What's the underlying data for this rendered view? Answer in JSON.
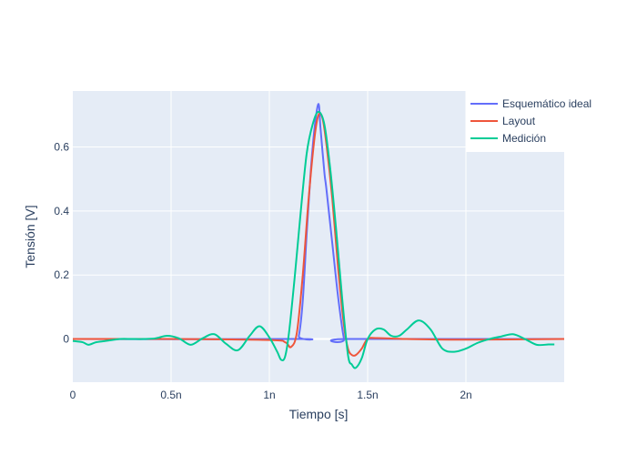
{
  "chart_data": {
    "type": "line",
    "xlabel": "Tiempo [s]",
    "ylabel": "Tensión [V]",
    "xlim": [
      0,
      2.5e-09
    ],
    "ylim": [
      -0.135,
      0.775
    ],
    "xticks": [
      {
        "value": 0,
        "label": "0"
      },
      {
        "value": 5e-10,
        "label": "0.5n"
      },
      {
        "value": 1e-09,
        "label": "1n"
      },
      {
        "value": 1.5e-09,
        "label": "1.5n"
      },
      {
        "value": 2e-09,
        "label": "2n"
      }
    ],
    "yticks": [
      {
        "value": 0,
        "label": "0"
      },
      {
        "value": 0.2,
        "label": "0.2"
      },
      {
        "value": 0.4,
        "label": "0.4"
      },
      {
        "value": 0.6,
        "label": "0.6"
      }
    ],
    "grid": true,
    "legend_position": "top-right",
    "plot_background": "#E5ECF6",
    "series": [
      {
        "name": "Esquemático ideal",
        "color": "#636EFA",
        "x": [
          0,
          1.13e-09,
          1.15e-09,
          1.17e-09,
          1.19e-09,
          1.21e-09,
          1.23e-09,
          1.25e-09,
          1.26e-09,
          1.28e-09,
          1.29e-09,
          1.32e-09,
          1.35e-09,
          1.38e-09,
          1.4e-09,
          2.5e-09
        ],
        "y": [
          0,
          0,
          0.01,
          0.12,
          0.33,
          0.52,
          0.66,
          0.735,
          0.66,
          0.52,
          0.47,
          0.3,
          0.13,
          0.0,
          0.0,
          0.0
        ]
      },
      {
        "name": "Layout",
        "color": "#EF553B",
        "x": [
          0,
          5e-10,
          1e-09,
          1.08e-09,
          1.11e-09,
          1.14e-09,
          1.17e-09,
          1.2e-09,
          1.23e-09,
          1.25e-09,
          1.27e-09,
          1.29e-09,
          1.32e-09,
          1.35e-09,
          1.38e-09,
          1.4e-09,
          1.42e-09,
          1.44e-09,
          1.47e-09,
          1.5e-09,
          1.55e-09,
          1.7e-09,
          2e-09,
          2.5e-09
        ],
        "y": [
          0,
          0,
          -0.003,
          -0.01,
          -0.025,
          0.02,
          0.2,
          0.44,
          0.63,
          0.7,
          0.69,
          0.61,
          0.44,
          0.22,
          0.04,
          -0.03,
          -0.05,
          -0.05,
          -0.03,
          0.0,
          0.003,
          0.0,
          -0.002,
          0.0
        ]
      },
      {
        "name": "Medición",
        "color": "#00CC96",
        "x": [
          0,
          5e-11,
          8e-11,
          1.2e-10,
          1.8e-10,
          2.4e-10,
          3e-10,
          3.6e-10,
          4.2e-10,
          4.8e-10,
          5.4e-10,
          6e-10,
          6.6e-10,
          7.2e-10,
          7.8e-10,
          8.4e-10,
          9e-10,
          9.5e-10,
          1e-09,
          1.04e-09,
          1.06e-09,
          1.08e-09,
          1.1e-09,
          1.13e-09,
          1.16e-09,
          1.19e-09,
          1.22e-09,
          1.25e-09,
          1.28e-09,
          1.31e-09,
          1.34e-09,
          1.37e-09,
          1.4e-09,
          1.42e-09,
          1.44e-09,
          1.47e-09,
          1.5e-09,
          1.54e-09,
          1.58e-09,
          1.62e-09,
          1.66e-09,
          1.7e-09,
          1.76e-09,
          1.82e-09,
          1.88e-09,
          1.94e-09,
          2e-09,
          2.06e-09,
          2.12e-09,
          2.18e-09,
          2.24e-09,
          2.3e-09,
          2.36e-09,
          2.42e-09,
          2.45e-09
        ],
        "y": [
          -0.006,
          -0.01,
          -0.018,
          -0.01,
          -0.005,
          0.0,
          0.0,
          0.0,
          0.002,
          0.01,
          0.002,
          -0.018,
          0.002,
          0.015,
          -0.015,
          -0.035,
          0.01,
          0.04,
          0.005,
          -0.04,
          -0.065,
          -0.055,
          0.02,
          0.2,
          0.4,
          0.58,
          0.67,
          0.71,
          0.67,
          0.53,
          0.34,
          0.13,
          -0.05,
          -0.08,
          -0.09,
          -0.06,
          0.0,
          0.03,
          0.03,
          0.01,
          0.01,
          0.03,
          0.058,
          0.03,
          -0.03,
          -0.04,
          -0.03,
          -0.012,
          0.0,
          0.008,
          0.015,
          0.0,
          -0.018,
          -0.017,
          -0.017
        ]
      }
    ]
  }
}
